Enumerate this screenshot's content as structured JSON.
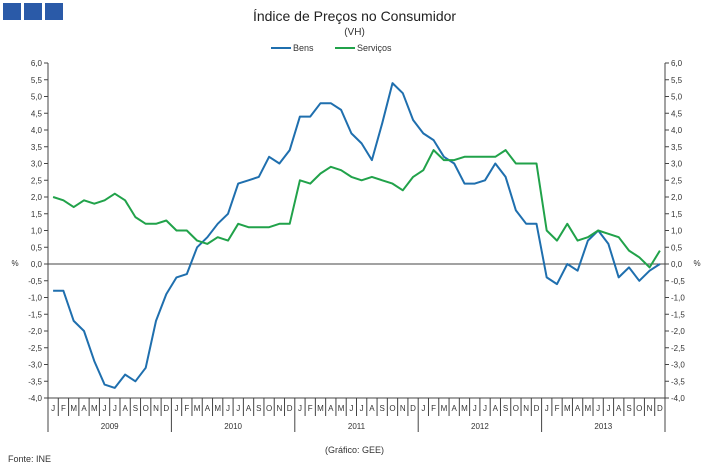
{
  "header": {
    "title": "Índice de Preços no Consumidor",
    "subtitle": "(VH)"
  },
  "footer": {
    "note": "(Gráfico: GEE)",
    "source": "Fonte: INE"
  },
  "colors": {
    "bens": "#1f6fae",
    "servicos": "#21a24a",
    "logo": "#2a5aa8"
  },
  "chart_data": {
    "type": "line",
    "title": "Índice de Preços no Consumidor",
    "subtitle": "(VH)",
    "ylabel_left": "%",
    "ylabel_right": "%",
    "ylim": [
      -4.0,
      6.0
    ],
    "yticks": [
      "6,0",
      "5,5",
      "5,0",
      "4,5",
      "4,0",
      "3,5",
      "3,0",
      "2,5",
      "2,0",
      "1,5",
      "1,0",
      "0,5",
      "0,0",
      "-0,5",
      "-1,0",
      "-1,5",
      "-2,0",
      "-2,5",
      "-3,0",
      "-3,5",
      "-4,0"
    ],
    "legend_position": "top-center",
    "grid": false,
    "month_labels": [
      "J",
      "F",
      "M",
      "A",
      "M",
      "J",
      "J",
      "A",
      "S",
      "O",
      "N",
      "D"
    ],
    "years": [
      "2009",
      "2010",
      "2011",
      "2012",
      "2013"
    ],
    "series": [
      {
        "name": "Bens",
        "color": "#1f6fae",
        "values": [
          -0.8,
          -0.8,
          -1.7,
          -2.0,
          -2.9,
          -3.6,
          -3.7,
          -3.3,
          -3.5,
          -3.1,
          -1.7,
          -0.9,
          -0.4,
          -0.3,
          0.5,
          0.8,
          1.2,
          1.5,
          2.4,
          2.5,
          2.6,
          3.2,
          3.0,
          3.4,
          4.4,
          4.4,
          4.8,
          4.8,
          4.6,
          3.9,
          3.6,
          3.1,
          4.2,
          5.4,
          5.1,
          4.3,
          3.9,
          3.7,
          3.2,
          3.0,
          2.4,
          2.4,
          2.5,
          3.0,
          2.6,
          1.6,
          1.2,
          1.2,
          -0.4,
          -0.6,
          0.0,
          -0.2,
          0.7,
          1.0,
          0.6,
          -0.4,
          -0.1,
          -0.5,
          -0.2,
          0.0
        ]
      },
      {
        "name": "Serviços",
        "color": "#21a24a",
        "values": [
          2.0,
          1.9,
          1.7,
          1.9,
          1.8,
          1.9,
          2.1,
          1.9,
          1.4,
          1.2,
          1.2,
          1.3,
          1.0,
          1.0,
          0.7,
          0.6,
          0.8,
          0.7,
          1.2,
          1.1,
          1.1,
          1.1,
          1.2,
          1.2,
          2.5,
          2.4,
          2.7,
          2.9,
          2.8,
          2.6,
          2.5,
          2.6,
          2.5,
          2.4,
          2.2,
          2.6,
          2.8,
          3.4,
          3.1,
          3.1,
          3.2,
          3.2,
          3.2,
          3.2,
          3.4,
          3.0,
          3.0,
          3.0,
          1.0,
          0.7,
          1.2,
          0.7,
          0.8,
          1.0,
          0.9,
          0.8,
          0.4,
          0.2,
          -0.1,
          0.4
        ]
      }
    ]
  }
}
